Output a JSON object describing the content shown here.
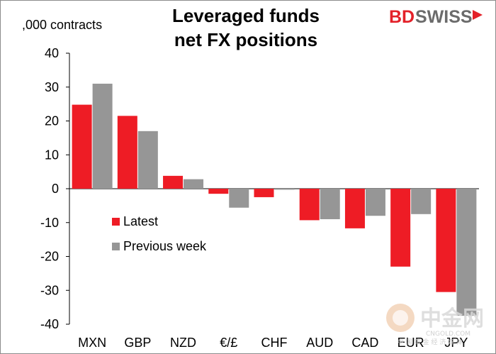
{
  "header": {
    "title_line1": "Leveraged funds",
    "title_line2": "net FX positions",
    "unit_label": ",000 contracts",
    "logo_bd": "BD",
    "logo_swiss": "SWISS"
  },
  "watermark": {
    "text": "中金网",
    "subtext": "CNGOLD.COM",
    "subtext2": "中 国 黄 金 经 济 媒 体"
  },
  "colors": {
    "latest": "#ee1c25",
    "previous": "#969696",
    "axis": "#000000",
    "brand_red": "#e32129",
    "brand_gray": "#6b6b6b"
  },
  "chart_data": {
    "type": "bar",
    "title": "Leveraged funds net FX positions",
    "ylabel": ",000 contracts",
    "xlabel": "",
    "ylim": [
      -40,
      40
    ],
    "yticks": [
      40,
      30,
      20,
      10,
      0,
      -10,
      -20,
      -30,
      -40
    ],
    "categories": [
      "MXN",
      "GBP",
      "NZD",
      "€/£",
      "CHF",
      "AUD",
      "CAD",
      "EUR",
      "JPY"
    ],
    "series": [
      {
        "name": "Latest",
        "values": [
          24.8,
          21.5,
          3.8,
          -1.5,
          -2.5,
          -9.3,
          -11.7,
          -23.0,
          -30.5
        ]
      },
      {
        "name": "Previous week",
        "values": [
          31.0,
          17.0,
          2.8,
          -5.6,
          -0.3,
          -9.0,
          -8.0,
          -7.5,
          -37.5
        ]
      }
    ],
    "legend_position": "left, below zero line",
    "grid": false
  }
}
